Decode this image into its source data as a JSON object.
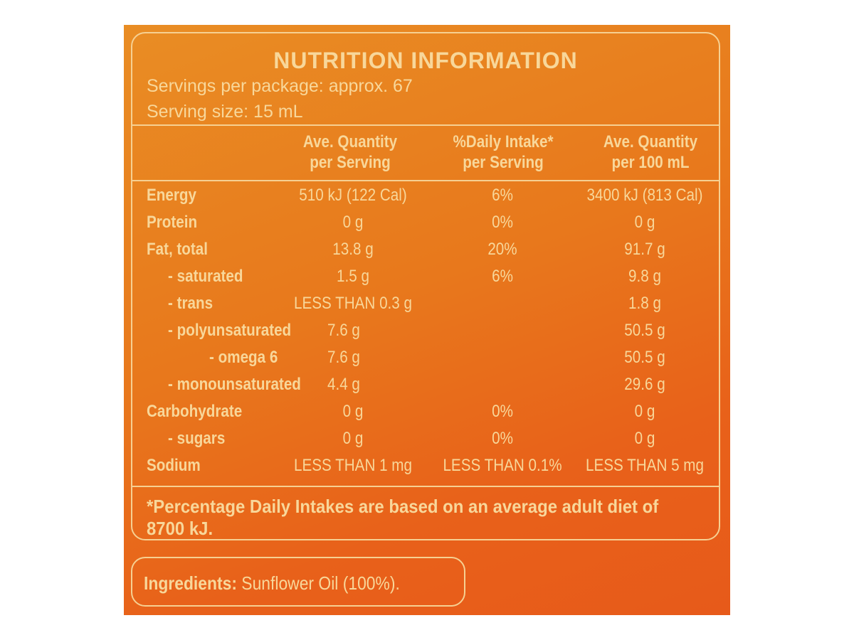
{
  "title": "NUTRITION INFORMATION",
  "servings_per_package": "Servings per package: approx. 67",
  "serving_size": "Serving size: 15 mL",
  "headers": {
    "col1": [
      "Ave. Quantity",
      "per Serving"
    ],
    "col2": [
      "%Daily Intake*",
      "per Serving"
    ],
    "col3": [
      "Ave. Quantity",
      "per 100 mL"
    ]
  },
  "rows": [
    {
      "name": "Energy",
      "per_serving": "510 kJ (122 Cal)",
      "daily_intake": "6%",
      "per_100ml": "3400 kJ (813 Cal)"
    },
    {
      "name": "Protein",
      "per_serving": "0 g",
      "daily_intake": "0%",
      "per_100ml": "0 g"
    },
    {
      "name": "Fat, total",
      "per_serving": "13.8 g",
      "daily_intake": "20%",
      "per_100ml": "91.7 g"
    },
    {
      "name": "- saturated",
      "per_serving": "1.5 g",
      "daily_intake": "6%",
      "per_100ml": "9.8 g"
    },
    {
      "name": "- trans",
      "per_serving": "LESS THAN 0.3 g",
      "daily_intake": "",
      "per_100ml": "1.8 g"
    },
    {
      "name": "- polyunsaturated",
      "per_serving": "7.6 g",
      "daily_intake": "",
      "per_100ml": "50.5 g"
    },
    {
      "name": "- omega 6",
      "per_serving": "7.6 g",
      "daily_intake": "",
      "per_100ml": "50.5 g"
    },
    {
      "name": "- monounsaturated",
      "per_serving": "4.4 g",
      "daily_intake": "",
      "per_100ml": "29.6 g"
    },
    {
      "name": "Carbohydrate",
      "per_serving": "0 g",
      "daily_intake": "0%",
      "per_100ml": "0 g"
    },
    {
      "name": "- sugars",
      "per_serving": "0 g",
      "daily_intake": "0%",
      "per_100ml": "0 g"
    },
    {
      "name": "Sodium",
      "per_serving": "LESS THAN 1 mg",
      "daily_intake": "LESS THAN 0.1%",
      "per_100ml": "LESS THAN 5 mg"
    }
  ],
  "footnote": "*Percentage Daily Intakes are based on an average adult diet of 8700 kJ.",
  "ingredients": {
    "label": "Ingredients:",
    "text": "Sunflower Oil (100%)."
  },
  "colors": {
    "background_top": "#e98d24",
    "background_bottom": "#e75a1a",
    "text": "#f8d79a"
  }
}
